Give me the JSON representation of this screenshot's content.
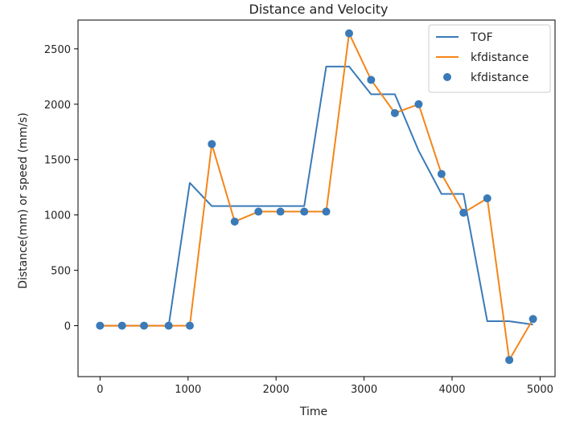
{
  "chart_data": {
    "type": "line",
    "title": "Distance and Velocity",
    "xlabel": "Time",
    "ylabel": "Distance(mm) or speed (mm/s)",
    "xlim": [
      -250,
      5170
    ],
    "ylim": [
      -460,
      2760
    ],
    "xticks": [
      0,
      1000,
      2000,
      3000,
      4000,
      5000
    ],
    "yticks": [
      0,
      500,
      1000,
      1500,
      2000,
      2500
    ],
    "grid": false,
    "legend_position": "top-right",
    "colors": {
      "TOF": "#3a7ab8",
      "kfdistance": "#f58518",
      "kfdistance_points": "#3a7ab8"
    },
    "series": [
      {
        "name": "TOF",
        "style": "line",
        "x": [
          0,
          250,
          500,
          780,
          1020,
          1270,
          1530,
          1800,
          2050,
          2320,
          2570,
          2830,
          3080,
          3350,
          3620,
          3880,
          4130,
          4400,
          4650,
          4920
        ],
        "y": [
          0,
          0,
          0,
          0,
          1290,
          1080,
          1080,
          1080,
          1080,
          1080,
          2340,
          2340,
          2090,
          2090,
          1580,
          1190,
          1190,
          40,
          40,
          10
        ]
      },
      {
        "name": "kfdistance",
        "style": "line",
        "x": [
          0,
          250,
          500,
          780,
          1020,
          1270,
          1530,
          1800,
          2050,
          2320,
          2570,
          2830,
          3080,
          3350,
          3620,
          3880,
          4130,
          4400,
          4650,
          4920
        ],
        "y": [
          0,
          0,
          0,
          0,
          0,
          1640,
          940,
          1030,
          1030,
          1030,
          1030,
          2640,
          2220,
          1920,
          2000,
          1370,
          1020,
          1150,
          -310,
          60
        ]
      },
      {
        "name": "kfdistance",
        "style": "scatter",
        "x": [
          0,
          250,
          500,
          780,
          1020,
          1270,
          1530,
          1800,
          2050,
          2320,
          2570,
          2830,
          3080,
          3350,
          3620,
          3880,
          4130,
          4400,
          4650,
          4920
        ],
        "y": [
          0,
          0,
          0,
          0,
          0,
          1640,
          940,
          1030,
          1030,
          1030,
          1030,
          2640,
          2220,
          1920,
          2000,
          1370,
          1020,
          1150,
          -310,
          60
        ]
      }
    ]
  }
}
